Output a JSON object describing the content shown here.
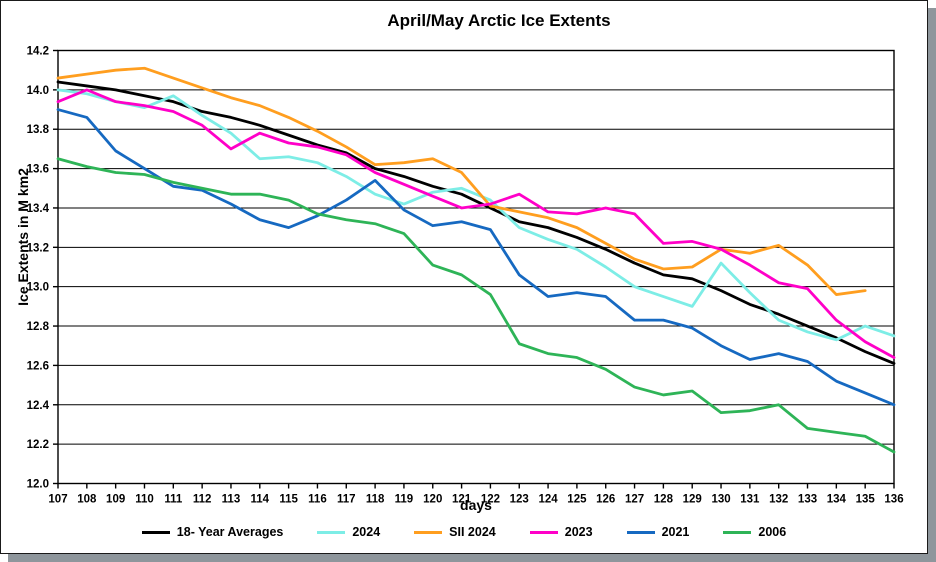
{
  "title": "April/May Arctic Ice Extents",
  "chart_data": {
    "type": "line",
    "title": "April/May Arctic Ice Extents",
    "xlabel": "days",
    "ylabel": "Ice Extents in M km2",
    "x": [
      107,
      108,
      109,
      110,
      111,
      112,
      113,
      114,
      115,
      116,
      117,
      118,
      119,
      120,
      121,
      122,
      123,
      124,
      125,
      126,
      127,
      128,
      129,
      130,
      131,
      132,
      133,
      134,
      135,
      136
    ],
    "ylim": [
      12.0,
      14.2
    ],
    "ytick_step": 0.2,
    "grid": true,
    "legend_position": "bottom",
    "series": [
      {
        "name": "18- Year Averages",
        "color": "#000000",
        "values": [
          14.04,
          14.02,
          14.0,
          13.97,
          13.94,
          13.89,
          13.86,
          13.82,
          13.77,
          13.72,
          13.68,
          13.6,
          13.56,
          13.51,
          13.47,
          13.4,
          13.33,
          13.3,
          13.25,
          13.19,
          13.12,
          13.06,
          13.04,
          12.98,
          12.91,
          12.86,
          12.8,
          12.74,
          12.67,
          12.61
        ]
      },
      {
        "name": "2024",
        "color": "#7DEDE6",
        "values": [
          14.0,
          13.98,
          13.94,
          13.91,
          13.97,
          13.87,
          13.78,
          13.65,
          13.66,
          13.63,
          13.56,
          13.47,
          13.42,
          13.48,
          13.5,
          13.44,
          13.3,
          13.24,
          13.19,
          13.1,
          13.0,
          12.95,
          12.9,
          13.12,
          12.97,
          12.83,
          12.77,
          12.73,
          12.8,
          12.75
        ]
      },
      {
        "name": "SII 2024",
        "color": "#FF9E1F",
        "values": [
          14.06,
          14.08,
          14.1,
          14.11,
          14.06,
          14.01,
          13.96,
          13.92,
          13.86,
          13.79,
          13.71,
          13.62,
          13.63,
          13.65,
          13.58,
          13.41,
          13.38,
          13.35,
          13.3,
          13.22,
          13.14,
          13.09,
          13.1,
          13.19,
          13.17,
          13.21,
          13.11,
          12.96,
          12.98,
          null
        ]
      },
      {
        "name": "2023",
        "color": "#FF00C8",
        "values": [
          13.94,
          14.0,
          13.94,
          13.92,
          13.89,
          13.82,
          13.7,
          13.78,
          13.73,
          13.71,
          13.67,
          13.58,
          13.52,
          13.46,
          13.4,
          13.42,
          13.47,
          13.38,
          13.37,
          13.4,
          13.37,
          13.22,
          13.23,
          13.19,
          13.11,
          13.02,
          12.99,
          12.83,
          12.72,
          12.64
        ]
      },
      {
        "name": "2021",
        "color": "#1669C1",
        "values": [
          13.9,
          13.86,
          13.69,
          13.6,
          13.51,
          13.49,
          13.42,
          13.34,
          13.3,
          13.36,
          13.44,
          13.54,
          13.39,
          13.31,
          13.33,
          13.29,
          13.06,
          12.95,
          12.97,
          12.95,
          12.83,
          12.83,
          12.79,
          12.7,
          12.63,
          12.66,
          12.62,
          12.52,
          12.46,
          12.4
        ]
      },
      {
        "name": "2006",
        "color": "#2EB457",
        "values": [
          13.65,
          13.61,
          13.58,
          13.57,
          13.53,
          13.5,
          13.47,
          13.47,
          13.44,
          13.37,
          13.34,
          13.32,
          13.27,
          13.11,
          13.06,
          12.96,
          12.71,
          12.66,
          12.64,
          12.58,
          12.49,
          12.45,
          12.47,
          12.36,
          12.37,
          12.4,
          12.28,
          12.26,
          12.24,
          12.16
        ]
      }
    ]
  }
}
